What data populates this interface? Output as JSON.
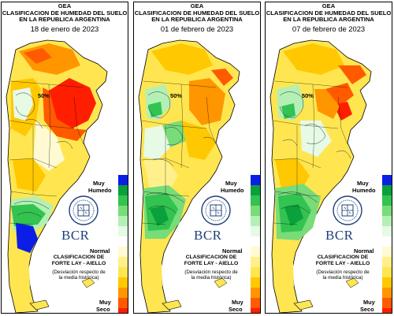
{
  "header": {
    "org": "GEA",
    "title_line1": "CLASIFICACION DE HUMEDAD DEL SUELO",
    "title_line2": "EN LA REPUBLICA ARGENTINA"
  },
  "panels": [
    {
      "date": "18 de enero de 2023",
      "contour_label": "50%"
    },
    {
      "date": "01 de febrero de 2023",
      "contour_label": "50%"
    },
    {
      "date": "07 de febrero de 2023",
      "contour_label": "50%"
    }
  ],
  "legend": {
    "muy_humedo_line1": "Muy",
    "muy_humedo_line2": "Humedo",
    "normal": "Normal",
    "muy_seco_line1": "Muy",
    "muy_seco_line2": "Seco",
    "colors": [
      "#0a1ee6",
      "#0aa03c",
      "#32c350",
      "#78dc78",
      "#b4f0b4",
      "#e6fae6",
      "#ffffff",
      "#fffad2",
      "#fff08c",
      "#ffe650",
      "#ffc800",
      "#ff9600",
      "#ff5a00",
      "#ff1e00"
    ]
  },
  "logo": {
    "text": "BCR"
  },
  "classification": {
    "line1": "CLASIFICACION DE",
    "line2": "FORTE LAY - AIELLO",
    "desc_line1": "(Desviación respecto de",
    "desc_line2": "la media histórica)"
  }
}
